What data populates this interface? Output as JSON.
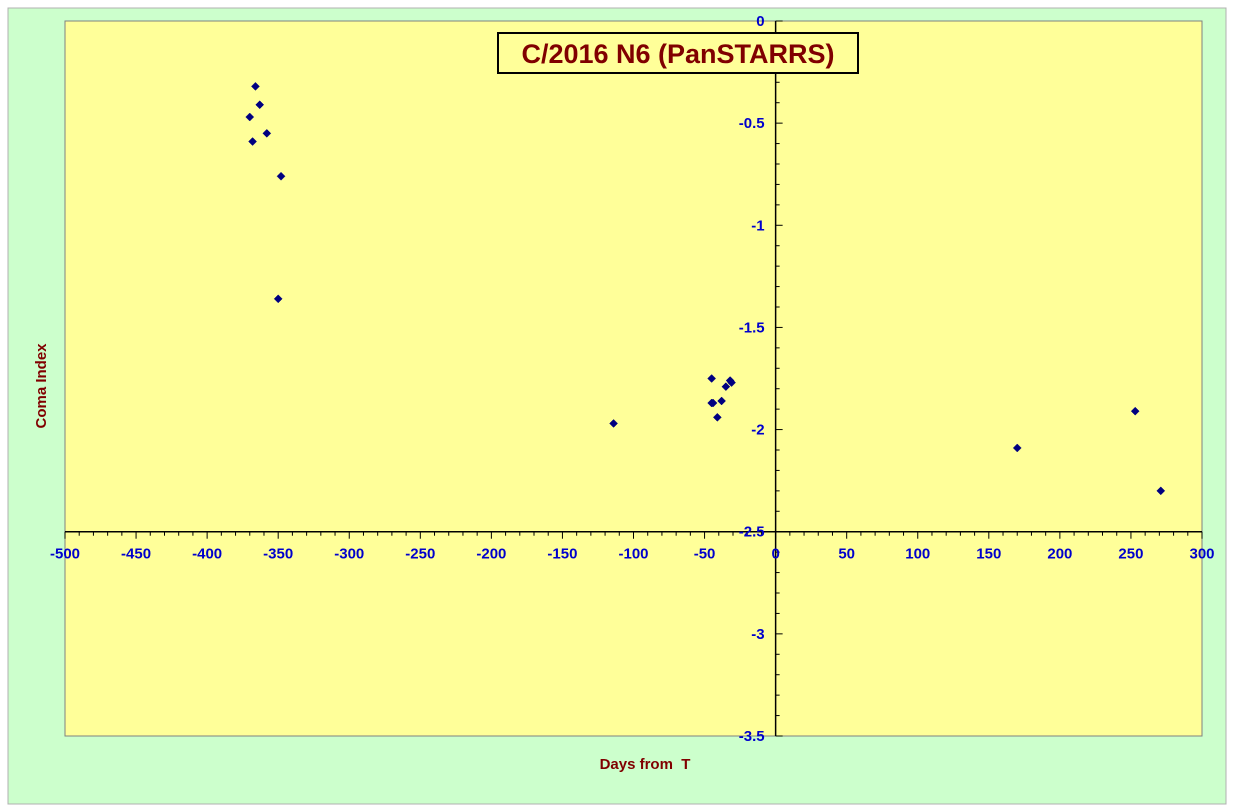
{
  "colors": {
    "outer_background": "#ccffcc",
    "plot_background": "#ffff99",
    "marker": "#000080",
    "tick_label": "#0000cc",
    "axis_title": "#800000",
    "title_text": "#800000",
    "axis_line": "#000000"
  },
  "chart_data": {
    "type": "scatter",
    "title": "C/2016 N6 (PanSTARRS)",
    "xlabel": "Days from  T",
    "ylabel": "Coma Index",
    "xlim": [
      -500,
      300
    ],
    "ylim": [
      -3.5,
      0
    ],
    "x_major_step": 50,
    "x_minor_step": 10,
    "y_major_step": 0.5,
    "y_minor_step": 0.1,
    "x_axis_crosses_y_at": -2.5,
    "y_axis_crosses_x_at": 0,
    "grid": false,
    "legend": "none",
    "x_tick_labels": [
      "-500",
      "-450",
      "-400",
      "-350",
      "-300",
      "-250",
      "-200",
      "-150",
      "-100",
      "-50",
      "0",
      "50",
      "100",
      "150",
      "200",
      "250",
      "300"
    ],
    "y_tick_labels": [
      "0",
      "-0.5",
      "-1",
      "-1.5",
      "-2",
      "-2.5",
      "-3",
      "-3.5"
    ],
    "marker": "diamond",
    "points": [
      {
        "x": -366,
        "y": -0.32
      },
      {
        "x": -363,
        "y": -0.41
      },
      {
        "x": -370,
        "y": -0.47
      },
      {
        "x": -358,
        "y": -0.55
      },
      {
        "x": -368,
        "y": -0.59
      },
      {
        "x": -348,
        "y": -0.76
      },
      {
        "x": -350,
        "y": -1.36
      },
      {
        "x": -114,
        "y": -1.97
      },
      {
        "x": -45,
        "y": -1.75
      },
      {
        "x": -45,
        "y": -1.87
      },
      {
        "x": -44,
        "y": -1.87
      },
      {
        "x": -38,
        "y": -1.86
      },
      {
        "x": -41,
        "y": -1.94
      },
      {
        "x": -35,
        "y": -1.79
      },
      {
        "x": -32,
        "y": -1.76
      },
      {
        "x": -31,
        "y": -1.77
      },
      {
        "x": 170,
        "y": -2.09
      },
      {
        "x": 253,
        "y": -1.91
      },
      {
        "x": 271,
        "y": -2.3
      }
    ]
  }
}
